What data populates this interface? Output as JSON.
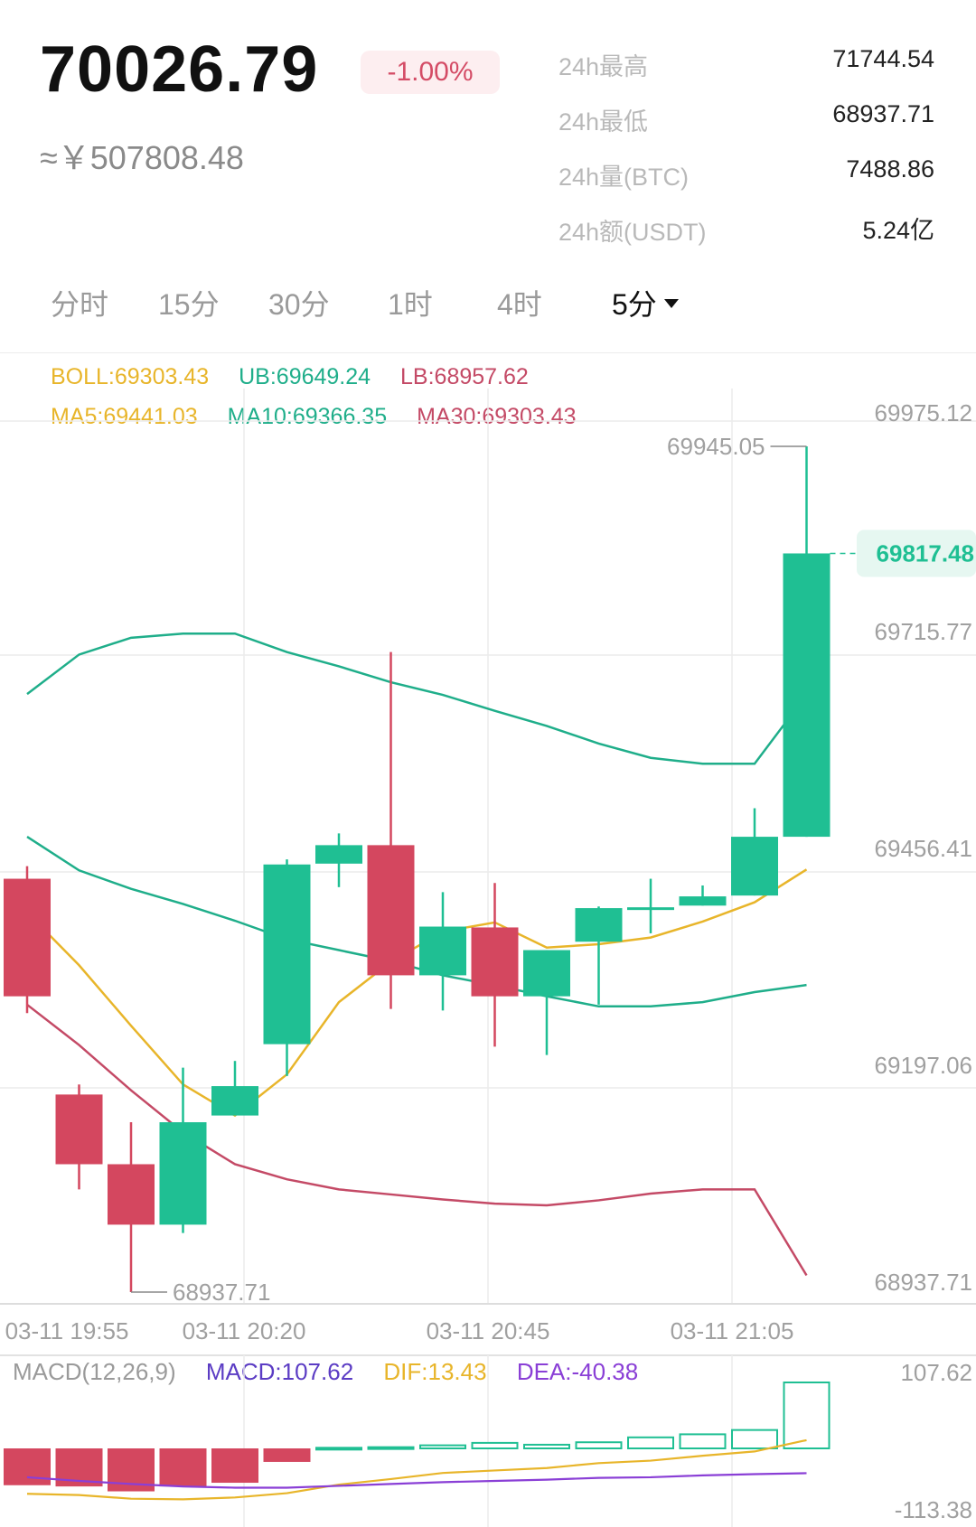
{
  "header": {
    "price": "70026.79",
    "change": "-1.00%",
    "cny": "≈￥507808.48",
    "stats": [
      {
        "label": "24h最高",
        "value": "71744.54"
      },
      {
        "label": "24h最低",
        "value": "68937.71"
      },
      {
        "label": "24h量(BTC)",
        "value": "7488.86"
      },
      {
        "label": "24h额(USDT)",
        "value": "5.24亿"
      }
    ]
  },
  "tabs": [
    {
      "label": "分时"
    },
    {
      "label": "15分"
    },
    {
      "label": "30分"
    },
    {
      "label": "1时"
    },
    {
      "label": "4时"
    },
    {
      "label": "5分",
      "active": true
    }
  ],
  "indicators": {
    "boll": "BOLL:69303.43",
    "ub": "UB:69649.24",
    "lb": "LB:68957.62",
    "ma5": "MA5:69441.03",
    "ma10": "MA10:69366.35",
    "ma30": "MA30:69303.43"
  },
  "macd_header": {
    "title": "MACD(12,26,9)",
    "macd": "MACD:107.62",
    "dif": "DIF:13.43",
    "dea": "DEA:-40.38"
  },
  "colors": {
    "up": "#1fbf93",
    "down": "#d4475f",
    "boll": "#e8b52a",
    "ub": "#1fae8a",
    "lb": "#c44a66",
    "dea": "#8a3fd6",
    "macd_label": "#5b3cc4",
    "grid": "#ececec"
  },
  "chart_data": [
    {
      "type": "candlestick",
      "y_ticks": [
        "69975.12",
        "69715.77",
        "69456.41",
        "69197.06",
        "68937.71"
      ],
      "ylim": [
        68937.71,
        69975.12
      ],
      "x_ticks": [
        "03-11 19:55",
        "03-11 20:20",
        "03-11 20:45",
        "03-11 21:05"
      ],
      "high_label": "69945.05",
      "low_label": "68937.71",
      "last_price_label": "69817.48",
      "last_price": 69817.48,
      "candles": [
        {
          "open": 69430,
          "close": 69290,
          "high": 69445,
          "low": 69270
        },
        {
          "open": 69173,
          "close": 69090,
          "high": 69185,
          "low": 69060
        },
        {
          "open": 69090,
          "close": 69018,
          "high": 69140,
          "low": 68937.71
        },
        {
          "open": 69018,
          "close": 69140,
          "high": 69205,
          "low": 69008
        },
        {
          "open": 69148,
          "close": 69183,
          "high": 69213,
          "low": 69148
        },
        {
          "open": 69233,
          "close": 69447,
          "high": 69453,
          "low": 69195
        },
        {
          "open": 69448,
          "close": 69470,
          "high": 69484,
          "low": 69420
        },
        {
          "open": 69470,
          "close": 69315,
          "high": 69700,
          "low": 69275
        },
        {
          "open": 69315,
          "close": 69373,
          "high": 69414,
          "low": 69273
        },
        {
          "open": 69372,
          "close": 69290,
          "high": 69425,
          "low": 69230
        },
        {
          "open": 69290,
          "close": 69345,
          "high": 69345,
          "low": 69220
        },
        {
          "open": 69355,
          "close": 69395,
          "high": 69397,
          "low": 69280
        },
        {
          "open": 69396,
          "close": 69396,
          "high": 69430,
          "low": 69365
        },
        {
          "open": 69398,
          "close": 69409,
          "high": 69422,
          "low": 69398
        },
        {
          "open": 69410,
          "close": 69480,
          "high": 69514,
          "low": 69410
        },
        {
          "open": 69480,
          "close": 69817.48,
          "high": 69945.05,
          "low": 69480
        }
      ],
      "boll_mid": [
        69480,
        69440,
        69418,
        69400,
        69380,
        69358,
        69345,
        69332,
        69315,
        69303,
        69290,
        69278,
        69278,
        69283,
        69295,
        69303.43
      ],
      "boll_upper": [
        69650,
        69697,
        69717,
        69722,
        69722,
        69700,
        69683,
        69664,
        69649,
        69630,
        69612,
        69591,
        69574,
        69567,
        69567,
        69649.24
      ],
      "boll_lower": [
        69280,
        69232,
        69178,
        69128,
        69090,
        69072,
        69060,
        69054,
        69048,
        69043,
        69041,
        69047,
        69055,
        69060,
        69060,
        68957.62
      ],
      "ma5": [
        69390,
        69327,
        69255,
        69185,
        69148,
        69197,
        69283,
        69331,
        69367,
        69378,
        69348,
        69352,
        69360,
        69379,
        69402,
        69441.03
      ]
    },
    {
      "type": "bar",
      "title": "MACD(12,26,9)",
      "ylim": [
        -113.38,
        107.62
      ],
      "y_ticks": [
        "107.62",
        "-113.38"
      ],
      "histogram": [
        -60,
        -62,
        -70,
        -62,
        -56,
        -22,
        1,
        2,
        5,
        9,
        6,
        10,
        18,
        23,
        30,
        107.62
      ],
      "dif": [
        -74,
        -76,
        -82,
        -83,
        -80,
        -73,
        -59,
        -50,
        -40,
        -36,
        -32,
        -24,
        -20,
        -12,
        -5,
        13.43
      ],
      "dea": [
        -47,
        -53,
        -58,
        -62,
        -64,
        -64,
        -61,
        -58,
        -55,
        -53,
        -51,
        -48,
        -47,
        -44,
        -42,
        -40.38
      ]
    }
  ]
}
